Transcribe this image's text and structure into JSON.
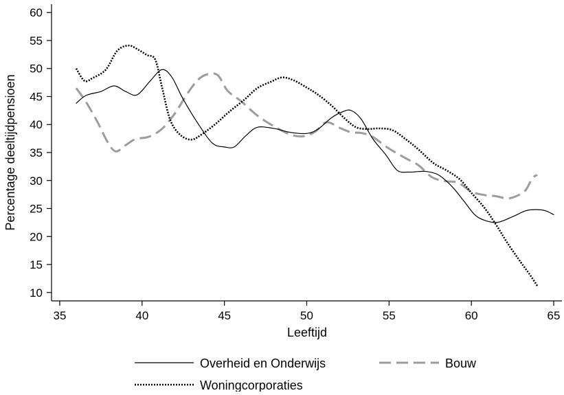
{
  "chart_data": {
    "type": "line",
    "title": "",
    "xlabel": "Leeftijd",
    "ylabel": "Percentage deeltijdpensioen",
    "xlim": [
      34.5,
      65.5
    ],
    "ylim": [
      8.5,
      61.5
    ],
    "xticks": [
      35,
      40,
      45,
      50,
      55,
      60,
      65
    ],
    "yticks": [
      10,
      15,
      20,
      25,
      30,
      35,
      40,
      45,
      50,
      55,
      60
    ],
    "grid": false,
    "legend_position": "bottom",
    "series": [
      {
        "name": "Overheid en Onderwijs",
        "style": "solid",
        "color": "#000000",
        "x": [
          36,
          36.6,
          37.5,
          38.3,
          39,
          39.7,
          40.5,
          41.2,
          41.8,
          42.5,
          43.5,
          44.3,
          45,
          45.6,
          46.3,
          47,
          48,
          49,
          50,
          50.7,
          51.5,
          52.2,
          52.7,
          53.3,
          54,
          54.8,
          55.5,
          56.2,
          56.8,
          57.3,
          58,
          58.8,
          59.5,
          60.2,
          60.8,
          61.5,
          62,
          62.7,
          63.3,
          63.9,
          64.5,
          65
        ],
        "y": [
          43.8,
          45.2,
          45.9,
          46.9,
          45.9,
          45.3,
          47.8,
          49.8,
          48.5,
          44.5,
          39.7,
          36.6,
          36,
          36,
          38,
          39.5,
          39.3,
          38.6,
          38.4,
          39.2,
          41.2,
          42.3,
          42.5,
          41,
          37.5,
          34.6,
          31.8,
          31.5,
          31.6,
          31.6,
          31,
          29,
          26.5,
          23.9,
          22.9,
          22.5,
          22.9,
          23.8,
          24.6,
          24.8,
          24.6,
          23.9
        ]
      },
      {
        "name": "Bouw",
        "style": "dashed",
        "color": "#9c9c9c",
        "x": [
          36,
          36.6,
          37.3,
          37.9,
          38.4,
          39,
          39.6,
          40.4,
          41.2,
          42,
          42.7,
          43.4,
          44,
          44.6,
          45.2,
          46,
          47,
          48,
          49,
          49.8,
          50.5,
          51.2,
          52,
          52.7,
          53.3,
          54,
          55,
          56,
          56.8,
          57.6,
          58.4,
          59.2,
          60,
          60.8,
          61.5,
          62.2,
          62.8,
          63.3,
          63.7,
          64
        ],
        "y": [
          46.5,
          44,
          40.4,
          36.9,
          35.2,
          36.3,
          37.4,
          37.8,
          39.2,
          42,
          45.3,
          48,
          49,
          48.8,
          46,
          44.2,
          41.6,
          39.7,
          38.2,
          37.9,
          38.7,
          40.4,
          39.4,
          38.6,
          38.5,
          37.8,
          35.7,
          34,
          32.7,
          30.6,
          29.9,
          29.6,
          28,
          27.4,
          27.2,
          26.8,
          27.3,
          28.3,
          30.4,
          31
        ]
      },
      {
        "name": "Woningcorporaties",
        "style": "dotted",
        "color": "#000000",
        "x": [
          36,
          36.5,
          37,
          37.8,
          38.5,
          39.2,
          39.8,
          40.3,
          40.8,
          41.2,
          41.7,
          42.3,
          43,
          43.7,
          44.5,
          45.3,
          46.2,
          47,
          47.8,
          48.5,
          49.2,
          50,
          50.7,
          51.5,
          52.3,
          53,
          53.7,
          54.4,
          55.2,
          56,
          56.8,
          57.7,
          58.5,
          59.3,
          60,
          60.8,
          61.5,
          62.2,
          63,
          63.5,
          64
        ],
        "y": [
          50,
          47.8,
          48.3,
          49.8,
          53.2,
          54.1,
          53.3,
          52.4,
          51.6,
          46.8,
          40.9,
          38.2,
          37.3,
          38.4,
          40.2,
          42.3,
          44.4,
          46.5,
          47.6,
          48.4,
          47.9,
          46.6,
          45.3,
          43.4,
          41.1,
          39.5,
          39.2,
          39.3,
          39,
          37.4,
          35.5,
          33.1,
          31.8,
          30.2,
          27.8,
          25.1,
          22.1,
          18.8,
          15.4,
          13.4,
          11.2
        ]
      }
    ]
  }
}
